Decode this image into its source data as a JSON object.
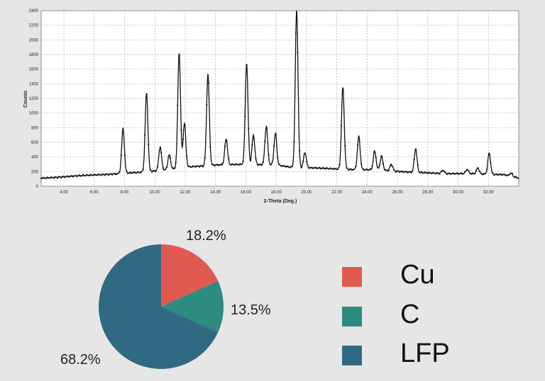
{
  "chart_data": [
    {
      "type": "line",
      "title": "",
      "xlabel": "2-Theta (Deg.)",
      "ylabel": "Counts",
      "xlim": [
        2.5,
        34
      ],
      "ylim": [
        0,
        2400
      ],
      "grid": true,
      "x_ticks": [
        "4.00",
        "6.00",
        "8.00",
        "10.00",
        "12.00",
        "14.00",
        "16.00",
        "18.00",
        "20.00",
        "22.00",
        "24.00",
        "26.00",
        "28.00",
        "30.00",
        "32.00"
      ],
      "y_ticks": [
        "0",
        "200",
        "400",
        "600",
        "800",
        "1000",
        "1200",
        "1400",
        "1600",
        "1800",
        "2000",
        "2200",
        "2400"
      ],
      "baseline": [
        [
          2.5,
          110
        ],
        [
          4,
          130
        ],
        [
          6,
          155
        ],
        [
          7.5,
          170
        ],
        [
          9,
          190
        ],
        [
          11,
          230
        ],
        [
          12.5,
          270
        ],
        [
          14,
          290
        ],
        [
          16,
          300
        ],
        [
          18,
          290
        ],
        [
          19,
          260
        ],
        [
          20.5,
          250
        ],
        [
          21.5,
          240
        ],
        [
          23,
          230
        ],
        [
          25,
          220
        ],
        [
          27,
          190
        ],
        [
          29,
          175
        ],
        [
          31,
          170
        ],
        [
          33,
          160
        ],
        [
          34,
          110
        ]
      ],
      "peaks": [
        {
          "x": 7.9,
          "y": 780
        },
        {
          "x": 9.45,
          "y": 1270
        },
        {
          "x": 10.35,
          "y": 540
        },
        {
          "x": 10.95,
          "y": 430
        },
        {
          "x": 11.6,
          "y": 1820
        },
        {
          "x": 11.95,
          "y": 860
        },
        {
          "x": 13.5,
          "y": 1530
        },
        {
          "x": 14.7,
          "y": 650
        },
        {
          "x": 16.05,
          "y": 1680
        },
        {
          "x": 16.5,
          "y": 700
        },
        {
          "x": 17.35,
          "y": 820
        },
        {
          "x": 17.95,
          "y": 720
        },
        {
          "x": 19.35,
          "y": 2400
        },
        {
          "x": 19.9,
          "y": 460
        },
        {
          "x": 22.4,
          "y": 1350
        },
        {
          "x": 23.45,
          "y": 680
        },
        {
          "x": 24.5,
          "y": 480
        },
        {
          "x": 24.95,
          "y": 410
        },
        {
          "x": 25.6,
          "y": 300
        },
        {
          "x": 27.2,
          "y": 510
        },
        {
          "x": 29.0,
          "y": 220
        },
        {
          "x": 30.6,
          "y": 230
        },
        {
          "x": 31.3,
          "y": 250
        },
        {
          "x": 32.05,
          "y": 450
        },
        {
          "x": 33.5,
          "y": 180
        }
      ]
    },
    {
      "type": "pie",
      "title": "",
      "slices": [
        {
          "label": "Cu",
          "value": 18.2,
          "display": "18.2%",
          "color": "#e05a52"
        },
        {
          "label": "C",
          "value": 13.5,
          "display": "13.5%",
          "color": "#2f8a80"
        },
        {
          "label": "LFP",
          "value": 68.2,
          "display": "68.2%",
          "color": "#306a82"
        }
      ],
      "legend_placement": "right"
    }
  ]
}
